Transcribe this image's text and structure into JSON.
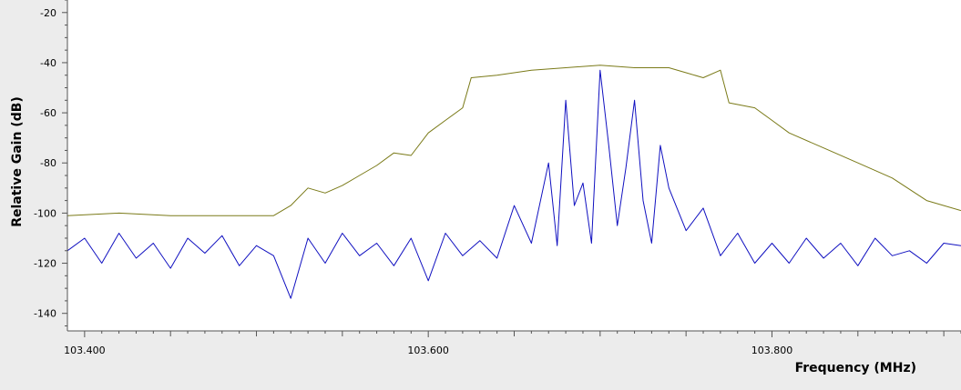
{
  "chart_data": {
    "type": "line",
    "xlabel": "Frequency (MHz)",
    "ylabel": "Relative Gain (dB)",
    "xlim": [
      103.39,
      103.91
    ],
    "ylim": [
      -147,
      -15
    ],
    "x_ticks": [
      {
        "value": 103.4,
        "label": "103.400"
      },
      {
        "value": 103.6,
        "label": "103.600"
      },
      {
        "value": 103.8,
        "label": "103.800"
      }
    ],
    "y_ticks": [
      {
        "value": -20,
        "label": "-20"
      },
      {
        "value": -40,
        "label": "-40"
      },
      {
        "value": -60,
        "label": "-60"
      },
      {
        "value": -80,
        "label": "-80"
      },
      {
        "value": -100,
        "label": "-100"
      },
      {
        "value": -120,
        "label": "-120"
      },
      {
        "value": -140,
        "label": "-140"
      }
    ],
    "series": [
      {
        "color": "#7a7a18",
        "x": [
          103.39,
          103.42,
          103.45,
          103.48,
          103.51,
          103.52,
          103.53,
          103.54,
          103.55,
          103.56,
          103.57,
          103.58,
          103.59,
          103.6,
          103.61,
          103.62,
          103.625,
          103.64,
          103.66,
          103.68,
          103.7,
          103.72,
          103.74,
          103.75,
          103.76,
          103.77,
          103.775,
          103.79,
          103.8,
          103.81,
          103.83,
          103.85,
          103.87,
          103.89,
          103.91
        ],
        "y": [
          -101,
          -100,
          -101,
          -101,
          -101,
          -97,
          -90,
          -92,
          -89,
          -85,
          -81,
          -76,
          -77,
          -68,
          -63,
          -58,
          -46,
          -45,
          -43,
          -42,
          -41,
          -42,
          -42,
          -44,
          -46,
          -43,
          -56,
          -58,
          -63,
          -68,
          -74,
          -80,
          -86,
          -95,
          -99
        ]
      },
      {
        "color": "#1010c0",
        "x": [
          103.39,
          103.4,
          103.41,
          103.42,
          103.43,
          103.44,
          103.45,
          103.46,
          103.47,
          103.48,
          103.49,
          103.5,
          103.51,
          103.52,
          103.53,
          103.54,
          103.55,
          103.56,
          103.57,
          103.58,
          103.59,
          103.6,
          103.61,
          103.62,
          103.63,
          103.64,
          103.65,
          103.66,
          103.67,
          103.675,
          103.68,
          103.685,
          103.69,
          103.695,
          103.7,
          103.705,
          103.71,
          103.715,
          103.72,
          103.725,
          103.73,
          103.735,
          103.74,
          103.75,
          103.76,
          103.77,
          103.78,
          103.79,
          103.8,
          103.81,
          103.82,
          103.83,
          103.84,
          103.85,
          103.86,
          103.87,
          103.88,
          103.89,
          103.9,
          103.91
        ],
        "y": [
          -115,
          -110,
          -120,
          -108,
          -118,
          -112,
          -122,
          -110,
          -116,
          -109,
          -121,
          -113,
          -117,
          -134,
          -110,
          -120,
          -108,
          -117,
          -112,
          -121,
          -110,
          -127,
          -108,
          -117,
          -111,
          -118,
          -97,
          -112,
          -80,
          -113,
          -55,
          -97,
          -88,
          -112,
          -43,
          -73,
          -105,
          -82,
          -55,
          -95,
          -112,
          -73,
          -90,
          -107,
          -98,
          -117,
          -108,
          -120,
          -112,
          -120,
          -110,
          -118,
          -112,
          -121,
          -110,
          -117,
          -115,
          -120,
          -112,
          -113
        ]
      }
    ]
  }
}
